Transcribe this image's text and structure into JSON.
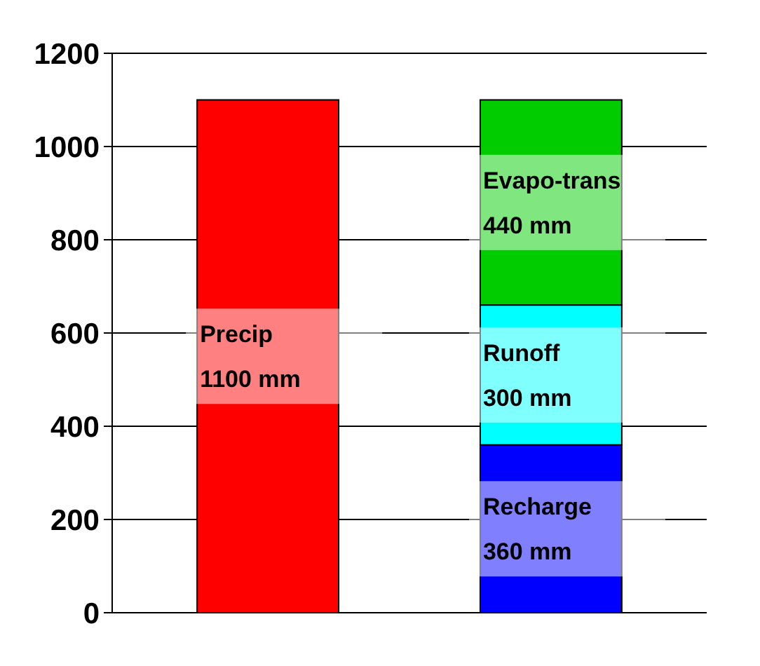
{
  "chart_data": {
    "type": "bar",
    "stacked": true,
    "categories": [
      null,
      null
    ],
    "ylim": [
      0,
      1200
    ],
    "yticks": [
      0,
      200,
      400,
      600,
      800,
      1000,
      1200
    ],
    "grid": "y",
    "series": [
      {
        "name": "Precip",
        "color": "#ff0000",
        "values": [
          1100,
          null
        ],
        "value_labels": [
          "1100 mm",
          null
        ]
      },
      {
        "name": "Recharge",
        "color": "#0000ff",
        "values": [
          null,
          360
        ],
        "value_labels": [
          null,
          "360 mm"
        ]
      },
      {
        "name": "Runoff",
        "color": "#00ffff",
        "values": [
          null,
          300
        ],
        "value_labels": [
          null,
          "300 mm"
        ]
      },
      {
        "name": "Evapo-trans",
        "color": "#00cc00",
        "values": [
          null,
          440
        ],
        "value_labels": [
          null,
          "440 mm"
        ]
      }
    ]
  }
}
